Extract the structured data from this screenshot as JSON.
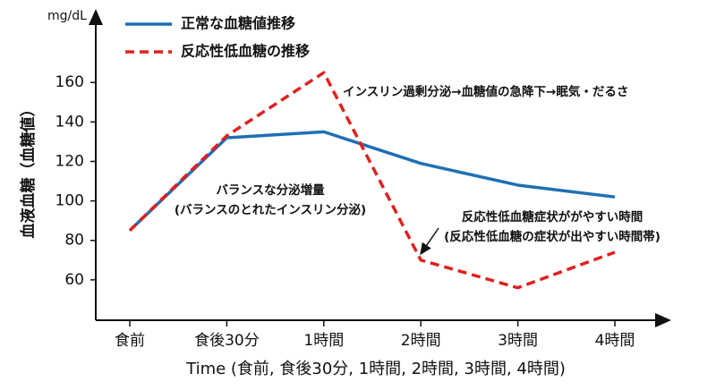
{
  "chart_data": {
    "type": "line",
    "y_label": "血液血糖（血糖値）",
    "y_unit": "mg/dL",
    "x_label": "Time (食前, 食後30分, 1時間, 2時間, 3時間, 4時間)",
    "categories": [
      "食前",
      "食後30分",
      "1時間",
      "2時間",
      "3時間",
      "4時間"
    ],
    "series": [
      {
        "name": "正常な血糖値推移",
        "color": "#1f6fb5",
        "dashed": false,
        "values": [
          85,
          132,
          135,
          119,
          108,
          102
        ]
      },
      {
        "name": "反応性低血糖の推移",
        "color": "#e02020",
        "dashed": true,
        "values": [
          85,
          133,
          165,
          70,
          56,
          74
        ]
      }
    ],
    "ylim": [
      40,
      195
    ],
    "yticks": [
      60,
      80,
      100,
      120,
      140,
      160
    ],
    "grid": false,
    "legend": "top-left",
    "annotations": [
      "インスリン過剰分泌→血糖値の急降下→眠気・だるさ",
      "バランスな分泌増量",
      "(バランスのとれたインスリン分泌)",
      "反応性低血糖症状ががやすい時間",
      "(反応性低血糖の症状が出やすい時間帯)"
    ]
  }
}
